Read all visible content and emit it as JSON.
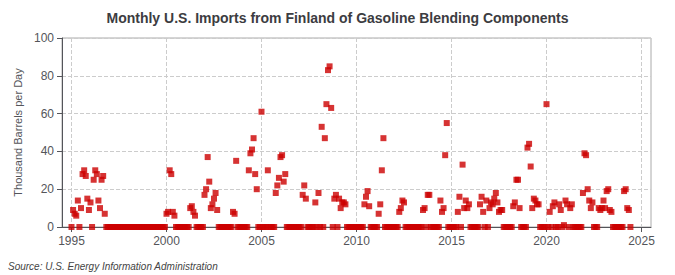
{
  "chart_data": {
    "type": "scatter",
    "title": "Monthly U.S. Imports from Finland of Gasoline Blending Components",
    "ylabel": "Thousand Barrels per Day",
    "annotations": [
      "Source: U.S. Energy Information Administration"
    ],
    "xlim": [
      1994.5,
      2025.5
    ],
    "ylim": [
      0,
      100
    ],
    "xticks": [
      1995,
      2000,
      2005,
      2010,
      2015,
      2020,
      2025
    ],
    "yticks": [
      0,
      20,
      40,
      60,
      80,
      100
    ],
    "grid": true,
    "color": "#cc0000",
    "marker": "square",
    "x": [
      1995.0,
      1995.083,
      1995.167,
      1995.25,
      1995.333,
      1995.417,
      1995.5,
      1995.583,
      1995.667,
      1995.75,
      1995.833,
      1995.917,
      1996.0,
      1996.083,
      1996.167,
      1996.25,
      1996.333,
      1996.417,
      1996.5,
      1996.583,
      1996.667,
      1996.75,
      1996.833,
      1996.917,
      1997.0,
      1997.083,
      1997.167,
      1997.25,
      1997.333,
      1997.417,
      1997.5,
      1997.583,
      1997.667,
      1997.75,
      1997.833,
      1997.917,
      1998.0,
      1998.083,
      1998.167,
      1998.25,
      1998.333,
      1998.417,
      1998.5,
      1998.583,
      1998.667,
      1998.75,
      1998.833,
      1998.917,
      1999.0,
      1999.083,
      1999.167,
      1999.25,
      1999.333,
      1999.417,
      1999.5,
      1999.583,
      1999.667,
      1999.75,
      1999.833,
      1999.917,
      2000.0,
      2000.083,
      2000.167,
      2000.25,
      2000.333,
      2000.417,
      2000.5,
      2000.583,
      2000.667,
      2000.75,
      2000.833,
      2000.917,
      2001.0,
      2001.083,
      2001.167,
      2001.25,
      2001.333,
      2001.417,
      2001.5,
      2001.583,
      2001.667,
      2001.75,
      2001.833,
      2001.917,
      2002.0,
      2002.083,
      2002.167,
      2002.25,
      2002.333,
      2002.417,
      2002.5,
      2002.583,
      2002.667,
      2002.75,
      2002.833,
      2002.917,
      2003.0,
      2003.083,
      2003.167,
      2003.25,
      2003.333,
      2003.417,
      2003.5,
      2003.583,
      2003.667,
      2003.75,
      2003.833,
      2003.917,
      2004.0,
      2004.083,
      2004.167,
      2004.25,
      2004.333,
      2004.417,
      2004.5,
      2004.583,
      2004.667,
      2004.75,
      2004.833,
      2004.917,
      2005.0,
      2005.083,
      2005.167,
      2005.25,
      2005.333,
      2005.417,
      2005.5,
      2005.583,
      2005.667,
      2005.75,
      2005.833,
      2005.917,
      2006.0,
      2006.083,
      2006.167,
      2006.25,
      2006.333,
      2006.417,
      2006.5,
      2006.583,
      2006.667,
      2006.75,
      2006.833,
      2006.917,
      2007.0,
      2007.083,
      2007.167,
      2007.25,
      2007.333,
      2007.417,
      2007.5,
      2007.583,
      2007.667,
      2007.75,
      2007.833,
      2007.917,
      2008.0,
      2008.083,
      2008.167,
      2008.25,
      2008.333,
      2008.417,
      2008.5,
      2008.583,
      2008.667,
      2008.75,
      2008.833,
      2008.917,
      2009.0,
      2009.083,
      2009.167,
      2009.25,
      2009.333,
      2009.417,
      2009.5,
      2009.583,
      2009.667,
      2009.75,
      2009.833,
      2009.917,
      2010.0,
      2010.083,
      2010.167,
      2010.25,
      2010.333,
      2010.417,
      2010.5,
      2010.583,
      2010.667,
      2010.75,
      2010.833,
      2010.917,
      2011.0,
      2011.083,
      2011.167,
      2011.25,
      2011.333,
      2011.417,
      2011.5,
      2011.583,
      2011.667,
      2011.75,
      2011.833,
      2011.917,
      2012.0,
      2012.083,
      2012.167,
      2012.25,
      2012.333,
      2012.417,
      2012.5,
      2012.583,
      2012.667,
      2012.75,
      2012.833,
      2012.917,
      2013.0,
      2013.083,
      2013.167,
      2013.25,
      2013.333,
      2013.417,
      2013.5,
      2013.583,
      2013.667,
      2013.75,
      2013.833,
      2013.917,
      2014.0,
      2014.083,
      2014.167,
      2014.25,
      2014.333,
      2014.417,
      2014.5,
      2014.583,
      2014.667,
      2014.75,
      2014.833,
      2014.917,
      2015.0,
      2015.083,
      2015.167,
      2015.25,
      2015.333,
      2015.417,
      2015.5,
      2015.583,
      2015.667,
      2015.75,
      2015.833,
      2015.917,
      2016.0,
      2016.083,
      2016.167,
      2016.25,
      2016.333,
      2016.417,
      2016.5,
      2016.583,
      2016.667,
      2016.75,
      2016.833,
      2016.917,
      2017.0,
      2017.083,
      2017.167,
      2017.25,
      2017.333,
      2017.417,
      2017.5,
      2017.583,
      2017.667,
      2017.75,
      2017.833,
      2017.917,
      2018.0,
      2018.083,
      2018.167,
      2018.25,
      2018.333,
      2018.417,
      2018.5,
      2018.583,
      2018.667,
      2018.75,
      2018.833,
      2018.917,
      2019.0,
      2019.083,
      2019.167,
      2019.25,
      2019.333,
      2019.417,
      2019.5,
      2019.583,
      2019.667,
      2019.75,
      2019.833,
      2019.917,
      2020.0,
      2020.083,
      2020.167,
      2020.25,
      2020.333,
      2020.417,
      2020.5,
      2020.583,
      2020.667,
      2020.75,
      2020.833,
      2020.917,
      2021.0,
      2021.083,
      2021.167,
      2021.25,
      2021.333,
      2021.417,
      2021.5,
      2021.583,
      2021.667,
      2021.75,
      2021.833,
      2021.917,
      2022.0,
      2022.083,
      2022.167,
      2022.25,
      2022.333,
      2022.417,
      2022.5,
      2022.583,
      2022.667,
      2022.75,
      2022.833,
      2022.917,
      2023.0,
      2023.083,
      2023.167,
      2023.25,
      2023.333,
      2023.417,
      2023.5,
      2023.583,
      2023.667,
      2023.75,
      2023.833,
      2023.917,
      2024.0,
      2024.083,
      2024.167,
      2024.25,
      2024.333,
      2024.417
    ],
    "values": [
      0,
      9,
      7,
      6,
      14,
      0,
      10,
      28,
      30,
      27,
      15,
      9,
      13,
      0,
      25,
      30,
      28,
      14,
      10,
      25,
      27,
      7,
      0,
      0,
      0,
      0,
      0,
      0,
      0,
      0,
      0,
      0,
      0,
      0,
      0,
      0,
      0,
      0,
      0,
      0,
      0,
      0,
      0,
      0,
      0,
      0,
      0,
      0,
      0,
      0,
      0,
      0,
      0,
      0,
      0,
      0,
      0,
      0,
      0,
      0,
      7,
      8,
      30,
      28,
      8,
      6,
      0,
      0,
      0,
      0,
      0,
      0,
      0,
      0,
      0,
      10,
      11,
      8,
      6,
      0,
      0,
      0,
      0,
      0,
      17,
      20,
      37,
      24,
      10,
      12,
      15,
      18,
      9,
      0,
      0,
      0,
      0,
      0,
      0,
      0,
      0,
      0,
      8,
      7,
      35,
      0,
      0,
      0,
      0,
      0,
      0,
      0,
      30,
      39,
      41,
      47,
      28,
      20,
      0,
      0,
      61,
      0,
      0,
      0,
      30,
      0,
      0,
      0,
      0,
      18,
      22,
      26,
      37,
      38,
      24,
      28,
      0,
      0,
      0,
      0,
      0,
      0,
      0,
      0,
      0,
      0,
      17,
      22,
      15,
      0,
      0,
      0,
      0,
      0,
      13,
      0,
      18,
      0,
      53,
      0,
      47,
      65,
      83,
      85,
      63,
      0,
      15,
      17,
      0,
      15,
      10,
      13,
      13,
      12,
      0,
      0,
      0,
      0,
      0,
      0,
      0,
      0,
      0,
      0,
      0,
      12,
      16,
      19,
      11,
      0,
      0,
      0,
      0,
      0,
      7,
      12,
      30,
      47,
      0,
      0,
      0,
      0,
      0,
      0,
      0,
      0,
      0,
      8,
      10,
      14,
      13,
      0,
      0,
      0,
      0,
      0,
      0,
      0,
      0,
      0,
      0,
      0,
      9,
      10,
      0,
      17,
      17,
      0,
      0,
      0,
      0,
      0,
      0,
      14,
      8,
      10,
      38,
      55,
      0,
      0,
      0,
      0,
      0,
      0,
      8,
      16,
      0,
      33,
      10,
      14,
      10,
      12,
      0,
      0,
      0,
      0,
      0,
      0,
      12,
      16,
      8,
      0,
      14,
      0,
      10,
      13,
      12,
      15,
      18,
      13,
      8,
      9,
      9,
      0,
      0,
      0,
      0,
      0,
      0,
      11,
      13,
      25,
      25,
      10,
      0,
      0,
      0,
      0,
      42,
      44,
      32,
      10,
      15,
      14,
      12,
      12,
      0,
      0,
      0,
      0,
      65,
      0,
      8,
      0,
      11,
      13,
      0,
      0,
      12,
      9,
      0,
      1,
      14,
      12,
      0,
      10,
      12,
      0,
      0,
      0,
      0,
      0,
      0,
      18,
      39,
      38,
      20,
      14,
      10,
      13,
      0,
      0,
      0,
      10,
      9,
      10,
      14,
      10,
      19,
      20,
      9,
      8,
      0,
      0,
      0,
      0,
      0,
      0,
      0,
      19,
      20,
      10,
      9,
      0
    ]
  }
}
